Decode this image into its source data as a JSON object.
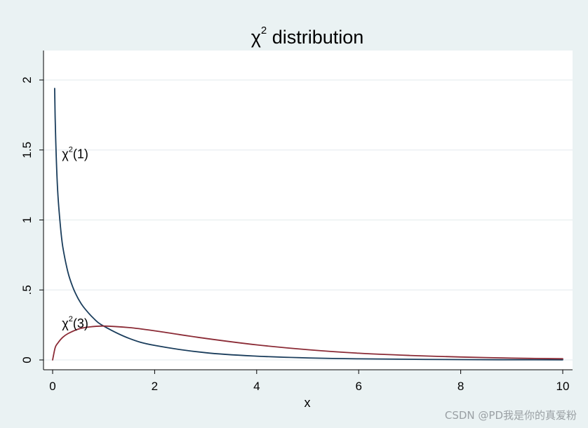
{
  "chart_data": {
    "type": "line",
    "title": "χ² distribution",
    "title_parts": {
      "base": "χ",
      "sup": "2",
      "rest": " distribution"
    },
    "xlabel": "x",
    "ylabel": "",
    "xlim": [
      0,
      10
    ],
    "ylim": [
      0,
      2.2
    ],
    "x_ticks": [
      0,
      2,
      4,
      6,
      8,
      10
    ],
    "x_tick_labels": [
      "0",
      "2",
      "4",
      "6",
      "8",
      "10"
    ],
    "y_ticks": [
      0,
      0.5,
      1,
      1.5,
      2
    ],
    "y_tick_labels": [
      "0",
      ".5",
      "1",
      "1.5",
      "2"
    ],
    "grid": "horizontal",
    "legend": "none",
    "series": [
      {
        "name": "χ²(1)",
        "label_parts": {
          "base": "χ",
          "sup": "2",
          "rest": "(1)"
        },
        "df": 1,
        "color": "#1a3d5c",
        "label_at": [
          0.1,
          1.45
        ],
        "x": [
          0.04,
          0.05,
          0.07,
          0.1,
          0.15,
          0.2,
          0.3,
          0.4,
          0.5,
          0.6,
          0.8,
          1.0,
          1.5,
          2.0,
          3.0,
          4.0,
          5.0,
          6.0,
          8.0,
          10.0
        ],
        "y": [
          1.94,
          1.73,
          1.46,
          1.2,
          0.967,
          0.807,
          0.627,
          0.516,
          0.439,
          0.381,
          0.298,
          0.242,
          0.154,
          0.104,
          0.0514,
          0.027,
          0.0146,
          0.0081,
          0.0025,
          0.0008
        ]
      },
      {
        "name": "χ²(3)",
        "label_parts": {
          "base": "χ",
          "sup": "2",
          "rest": "(3)"
        },
        "df": 3,
        "color": "#8b2b36",
        "label_at": [
          0.1,
          0.24
        ],
        "x": [
          0.0,
          0.05,
          0.1,
          0.2,
          0.3,
          0.5,
          0.7,
          1.0,
          1.5,
          2.0,
          3.0,
          4.0,
          5.0,
          6.0,
          7.0,
          8.0,
          9.0,
          10.0
        ],
        "y": [
          0.0,
          0.087,
          0.12,
          0.162,
          0.188,
          0.22,
          0.235,
          0.242,
          0.231,
          0.208,
          0.154,
          0.108,
          0.073,
          0.048,
          0.032,
          0.021,
          0.013,
          0.0085
        ]
      }
    ]
  },
  "watermark": "CSDN @PD我是你的真爱粉"
}
